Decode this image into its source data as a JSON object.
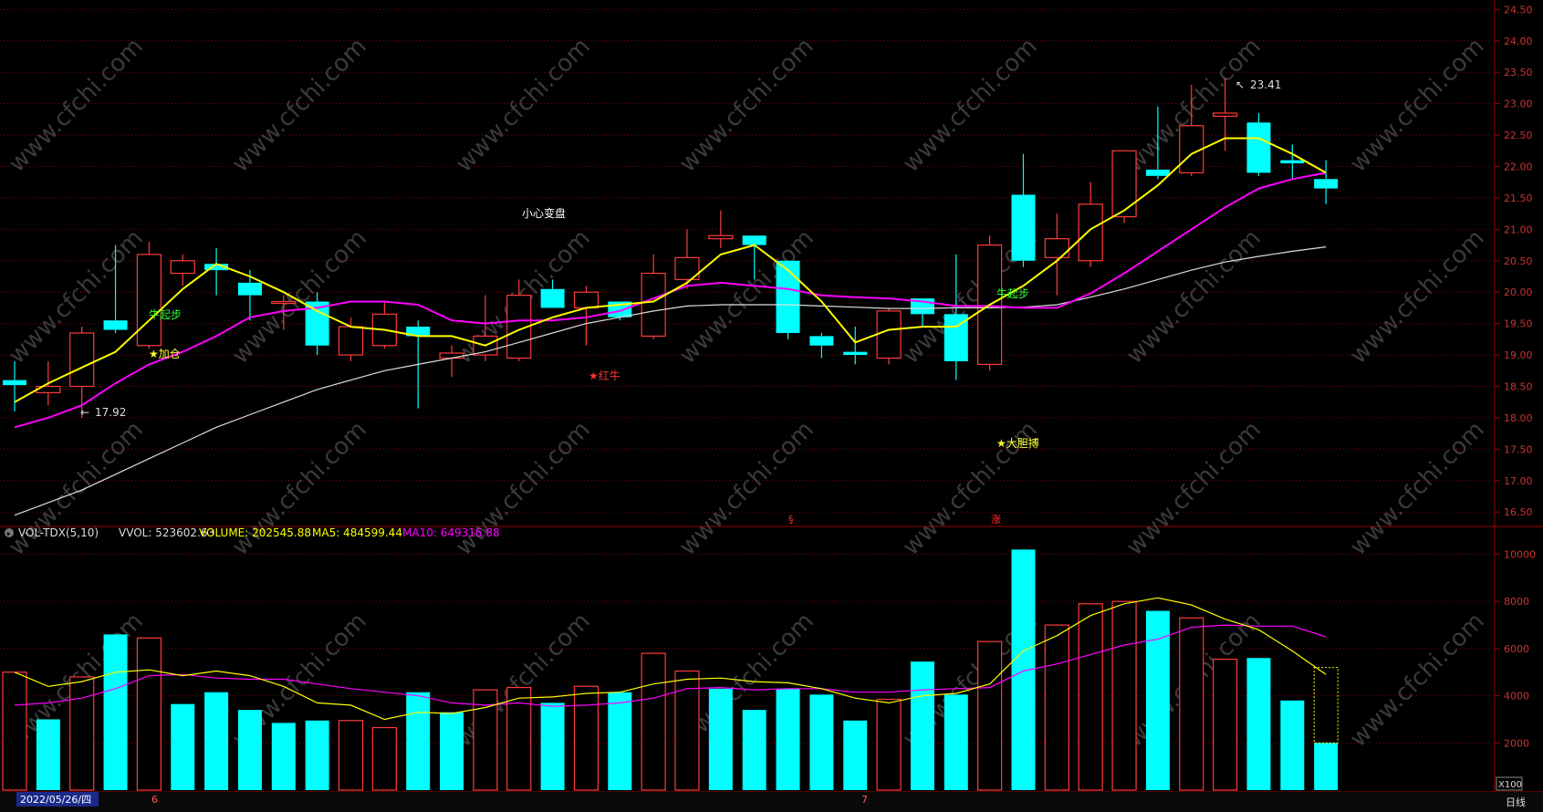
{
  "header": {
    "vol_title": "VOL-TDX(5,10)",
    "vvol_label": "VVOL: 523602.63",
    "volume_label": "VOLUME: 202545.88",
    "ma5_label": "MA5: 484599.44",
    "ma10_label": "MA10: 649316.88",
    "scale_label": "X100",
    "period_label": "日线",
    "date_label": "2022/05/26/四",
    "month_labels": [
      "6",
      "7"
    ]
  },
  "annotations": {
    "high": "23.41",
    "low": "17.92",
    "caution": "小心变盘",
    "bull_start_1": "牛起步",
    "add_position": "★加仓",
    "red_bull": "★红牛",
    "bull_start_2": "牛起步",
    "bold_bet": "★大胆搏",
    "s_mark": "§",
    "rise_mark": "涨"
  },
  "colors": {
    "up": "#ff3b3b",
    "down": "#00ffff",
    "ma5": "#ffff00",
    "ma10": "#ff00ff",
    "ma_long": "#dddddd",
    "grid": "#8b0000",
    "text": "#dddddd"
  },
  "chart_data": [
    {
      "type": "candlestick",
      "y_ticks": [
        "16.50",
        "17.00",
        "17.50",
        "18.00",
        "18.50",
        "19.00",
        "19.50",
        "20.00",
        "20.50",
        "21.00",
        "21.50",
        "22.00",
        "22.50",
        "23.00",
        "23.50",
        "24.00",
        "24.50"
      ],
      "ylim": [
        16.3,
        24.65
      ],
      "candles": [
        {
          "o": 18.6,
          "h": 18.9,
          "l": 18.1,
          "c": 18.52
        },
        {
          "o": 18.4,
          "h": 18.9,
          "l": 18.2,
          "c": 18.5
        },
        {
          "o": 18.5,
          "h": 19.45,
          "l": 18.0,
          "c": 19.35
        },
        {
          "o": 19.55,
          "h": 20.75,
          "l": 19.35,
          "c": 19.4
        },
        {
          "o": 19.15,
          "h": 20.8,
          "l": 19.1,
          "c": 20.6
        },
        {
          "o": 20.3,
          "h": 20.6,
          "l": 20.1,
          "c": 20.5
        },
        {
          "o": 20.45,
          "h": 20.7,
          "l": 19.95,
          "c": 20.35
        },
        {
          "o": 20.15,
          "h": 20.35,
          "l": 19.55,
          "c": 19.95
        },
        {
          "o": 19.85,
          "h": 19.95,
          "l": 19.4,
          "c": 19.85
        },
        {
          "o": 19.85,
          "h": 20.0,
          "l": 19.0,
          "c": 19.15
        },
        {
          "o": 19.0,
          "h": 19.6,
          "l": 18.9,
          "c": 19.45
        },
        {
          "o": 19.15,
          "h": 19.85,
          "l": 19.1,
          "c": 19.65
        },
        {
          "o": 19.45,
          "h": 19.55,
          "l": 18.15,
          "c": 19.3
        },
        {
          "o": 18.95,
          "h": 19.15,
          "l": 18.65,
          "c": 19.03
        },
        {
          "o": 19.0,
          "h": 19.95,
          "l": 18.9,
          "c": 19.3
        },
        {
          "o": 18.95,
          "h": 20.2,
          "l": 18.9,
          "c": 19.95
        },
        {
          "o": 20.05,
          "h": 20.2,
          "l": 19.75,
          "c": 19.75
        },
        {
          "o": 19.75,
          "h": 20.1,
          "l": 19.15,
          "c": 20.0
        },
        {
          "o": 19.85,
          "h": 19.85,
          "l": 19.55,
          "c": 19.6
        },
        {
          "o": 19.3,
          "h": 20.6,
          "l": 19.25,
          "c": 20.3
        },
        {
          "o": 20.2,
          "h": 21.0,
          "l": 20.05,
          "c": 20.55
        },
        {
          "o": 20.85,
          "h": 21.3,
          "l": 20.7,
          "c": 20.9
        },
        {
          "o": 20.9,
          "h": 20.9,
          "l": 20.2,
          "c": 20.75
        },
        {
          "o": 20.5,
          "h": 20.5,
          "l": 19.25,
          "c": 19.35
        },
        {
          "o": 19.3,
          "h": 19.35,
          "l": 18.95,
          "c": 19.15
        },
        {
          "o": 19.05,
          "h": 19.45,
          "l": 18.85,
          "c": 19.0
        },
        {
          "o": 18.95,
          "h": 19.75,
          "l": 18.85,
          "c": 19.7
        },
        {
          "o": 19.9,
          "h": 19.9,
          "l": 19.45,
          "c": 19.65
        },
        {
          "o": 19.65,
          "h": 20.6,
          "l": 18.6,
          "c": 18.9
        },
        {
          "o": 18.85,
          "h": 20.9,
          "l": 18.75,
          "c": 20.75
        },
        {
          "o": 21.55,
          "h": 22.2,
          "l": 20.4,
          "c": 20.5
        },
        {
          "o": 20.55,
          "h": 21.25,
          "l": 19.95,
          "c": 20.85
        },
        {
          "o": 20.5,
          "h": 21.75,
          "l": 20.4,
          "c": 21.4
        },
        {
          "o": 21.2,
          "h": 22.25,
          "l": 21.1,
          "c": 22.25
        },
        {
          "o": 21.95,
          "h": 22.95,
          "l": 21.8,
          "c": 21.85
        },
        {
          "o": 21.9,
          "h": 23.3,
          "l": 21.85,
          "c": 22.65
        },
        {
          "o": 22.8,
          "h": 23.41,
          "l": 22.25,
          "c": 22.85
        },
        {
          "o": 22.7,
          "h": 22.85,
          "l": 21.85,
          "c": 21.9
        },
        {
          "o": 22.1,
          "h": 22.35,
          "l": 21.8,
          "c": 22.05
        },
        {
          "o": 21.8,
          "h": 22.1,
          "l": 21.4,
          "c": 21.65
        }
      ],
      "ma5": [
        18.25,
        18.55,
        18.8,
        19.05,
        19.55,
        20.05,
        20.45,
        20.25,
        20.0,
        19.7,
        19.45,
        19.4,
        19.3,
        19.3,
        19.15,
        19.4,
        19.6,
        19.75,
        19.8,
        19.85,
        20.15,
        20.6,
        20.75,
        20.35,
        19.85,
        19.2,
        19.4,
        19.45,
        19.45,
        19.8,
        20.1,
        20.5,
        21.0,
        21.3,
        21.7,
        22.2,
        22.45,
        22.45,
        22.2,
        21.9
      ],
      "ma10": [
        17.85,
        18.0,
        18.2,
        18.55,
        18.85,
        19.05,
        19.3,
        19.6,
        19.7,
        19.75,
        19.85,
        19.85,
        19.8,
        19.55,
        19.5,
        19.55,
        19.55,
        19.6,
        19.7,
        19.9,
        20.1,
        20.15,
        20.1,
        20.05,
        19.95,
        19.92,
        19.9,
        19.85,
        19.78,
        19.78,
        19.75,
        19.75,
        19.98,
        20.3,
        20.65,
        21.0,
        21.35,
        21.65,
        21.8,
        21.9
      ],
      "ma_long": [
        16.45,
        16.65,
        16.85,
        17.1,
        17.35,
        17.6,
        17.85,
        18.05,
        18.25,
        18.45,
        18.6,
        18.75,
        18.85,
        18.95,
        19.05,
        19.2,
        19.35,
        19.5,
        19.6,
        19.7,
        19.78,
        19.8,
        19.8,
        19.8,
        19.78,
        19.76,
        19.74,
        19.74,
        19.75,
        19.75,
        19.76,
        19.8,
        19.92,
        20.05,
        20.2,
        20.35,
        20.48,
        20.57,
        20.65,
        20.72
      ]
    },
    {
      "type": "bar",
      "title": "VOL-TDX(5,10)",
      "y_ticks": [
        "2000",
        "4000",
        "6000",
        "8000",
        "10000"
      ],
      "ylim": [
        0,
        10600
      ],
      "values": [
        5000,
        3000,
        4800,
        6600,
        6450,
        3650,
        4150,
        3400,
        2850,
        2950,
        2950,
        2650,
        4150,
        3300,
        4250,
        4350,
        3700,
        4400,
        4150,
        5800,
        5050,
        4300,
        3400,
        4300,
        4050,
        2950,
        3850,
        5450,
        4050,
        6300,
        10200,
        7000,
        7900,
        8000,
        7600,
        7300,
        5550,
        5600,
        3800,
        2000
      ],
      "up": [
        true,
        false,
        true,
        false,
        true,
        false,
        false,
        false,
        false,
        false,
        true,
        true,
        false,
        false,
        true,
        true,
        false,
        true,
        false,
        true,
        true,
        false,
        false,
        false,
        false,
        false,
        true,
        false,
        false,
        true,
        false,
        true,
        true,
        true,
        false,
        true,
        true,
        false,
        false,
        false
      ],
      "ma5": [
        5000,
        4400,
        4600,
        5000,
        5100,
        4850,
        5050,
        4850,
        4400,
        3700,
        3600,
        3000,
        3300,
        3250,
        3500,
        3900,
        3950,
        4100,
        4150,
        4500,
        4700,
        4750,
        4600,
        4550,
        4300,
        3900,
        3700,
        4000,
        4100,
        4500,
        5900,
        6550,
        7400,
        7900,
        8150,
        7850,
        7250,
        6800,
        5900,
        4900
      ],
      "ma10": [
        3600,
        3700,
        3900,
        4300,
        4850,
        4900,
        4750,
        4700,
        4700,
        4500,
        4300,
        4150,
        4000,
        3700,
        3600,
        3700,
        3550,
        3600,
        3700,
        3900,
        4300,
        4350,
        4250,
        4300,
        4300,
        4150,
        4150,
        4250,
        4300,
        4350,
        5050,
        5350,
        5750,
        6150,
        6400,
        6900,
        7000,
        6950,
        6950,
        6500
      ]
    }
  ]
}
